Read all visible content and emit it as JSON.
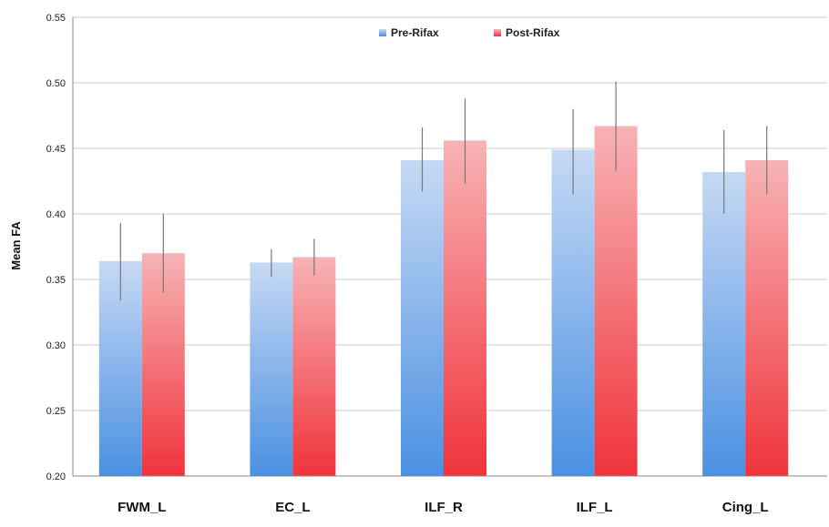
{
  "chart_data": {
    "type": "bar",
    "title": "",
    "xlabel": "",
    "ylabel": "Mean FA",
    "ylim": [
      0.2,
      0.55
    ],
    "yticks": [
      "0.20",
      "0.25",
      "0.30",
      "0.35",
      "0.40",
      "0.45",
      "0.50",
      "0.55"
    ],
    "grid": true,
    "legend_position": "top",
    "categories": [
      "FWM_L",
      "EC_L",
      "ILF_R",
      "ILF_L",
      "Cing_L"
    ],
    "series": [
      {
        "name": "Pre-Rifax",
        "color": "#5b9bd5",
        "values": [
          0.364,
          0.363,
          0.441,
          0.449,
          0.432
        ],
        "error_low": [
          0.334,
          0.352,
          0.417,
          0.415,
          0.4
        ],
        "error_high": [
          0.393,
          0.373,
          0.466,
          0.48,
          0.464
        ]
      },
      {
        "name": "Post-Rifax",
        "color": "#f0484e",
        "values": [
          0.37,
          0.367,
          0.456,
          0.467,
          0.441
        ],
        "error_low": [
          0.34,
          0.353,
          0.423,
          0.433,
          0.415
        ],
        "error_high": [
          0.4,
          0.381,
          0.488,
          0.501,
          0.467
        ]
      }
    ]
  }
}
